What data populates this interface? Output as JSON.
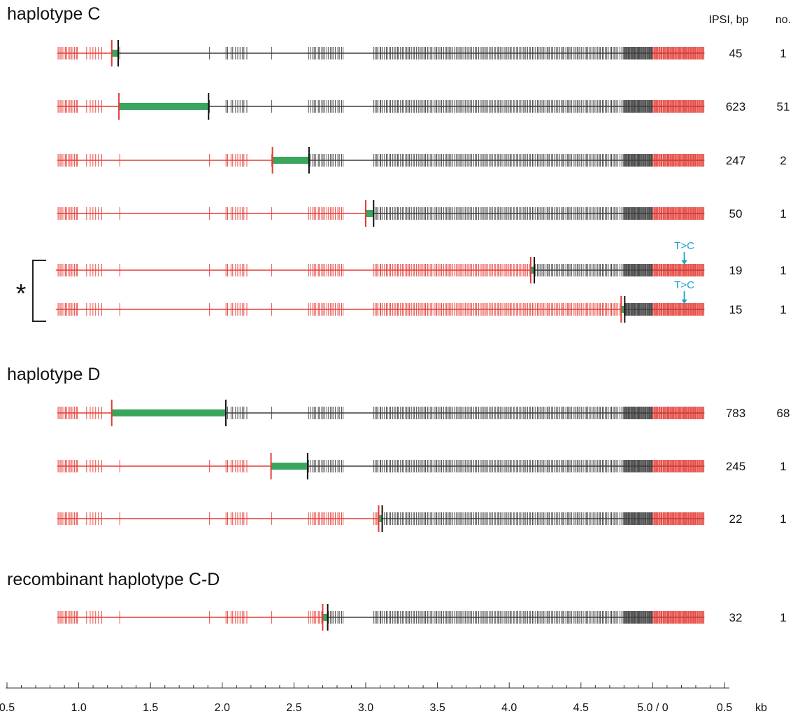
{
  "header": {
    "ipsi_label": "IPSI, bp",
    "count_label": "no."
  },
  "groups": [
    {
      "title": "haplotype C"
    },
    {
      "title": "haplotype D"
    },
    {
      "title": "recombinant haplotype C-D"
    }
  ],
  "bracket_label": "*",
  "mutation_label": "T>C",
  "axis": {
    "ticks": [
      "0.5",
      "1.0",
      "1.5",
      "2.0",
      "2.5",
      "3.0",
      "3.5",
      "4.0",
      "4.5",
      "5.0 / 0",
      "0.5"
    ],
    "unit": "kb"
  },
  "colors": {
    "haplotype_a": "#e53b35",
    "haplotype_b": "#3d3d3d",
    "ipsi": "#3aa65d",
    "mutation": "#1aa3c8"
  },
  "rows": [
    {
      "ipsi": "45",
      "count": "1",
      "track_start_kb": 0.85,
      "switch_start_kb": 1.23,
      "switch_end_kb": 1.27,
      "mutation": false
    },
    {
      "ipsi": "623",
      "count": "51",
      "track_start_kb": 0.85,
      "switch_start_kb": 1.28,
      "switch_end_kb": 1.9,
      "mutation": false
    },
    {
      "ipsi": "247",
      "count": "2",
      "track_start_kb": 0.85,
      "switch_start_kb": 2.35,
      "switch_end_kb": 2.6,
      "mutation": false
    },
    {
      "ipsi": "50",
      "count": "1",
      "track_start_kb": 0.85,
      "switch_start_kb": 3.0,
      "switch_end_kb": 3.05,
      "mutation": false
    },
    {
      "ipsi": "19",
      "count": "1",
      "track_start_kb": 0.84,
      "switch_start_kb": 4.15,
      "switch_end_kb": 4.17,
      "mutation": true
    },
    {
      "ipsi": "15",
      "count": "1",
      "track_start_kb": 0.84,
      "switch_start_kb": 4.78,
      "switch_end_kb": 4.8,
      "mutation": true
    },
    {
      "ipsi": "783",
      "count": "68",
      "track_start_kb": 0.85,
      "switch_start_kb": 1.23,
      "switch_end_kb": 2.02,
      "mutation": false
    },
    {
      "ipsi": "245",
      "count": "1",
      "track_start_kb": 0.85,
      "switch_start_kb": 2.34,
      "switch_end_kb": 2.59,
      "mutation": false
    },
    {
      "ipsi": "22",
      "count": "1",
      "track_start_kb": 0.85,
      "switch_start_kb": 3.09,
      "switch_end_kb": 3.11,
      "mutation": false
    },
    {
      "ipsi": "32",
      "count": "1",
      "track_start_kb": 0.85,
      "switch_start_kb": 2.7,
      "switch_end_kb": 2.73,
      "mutation": false
    }
  ]
}
